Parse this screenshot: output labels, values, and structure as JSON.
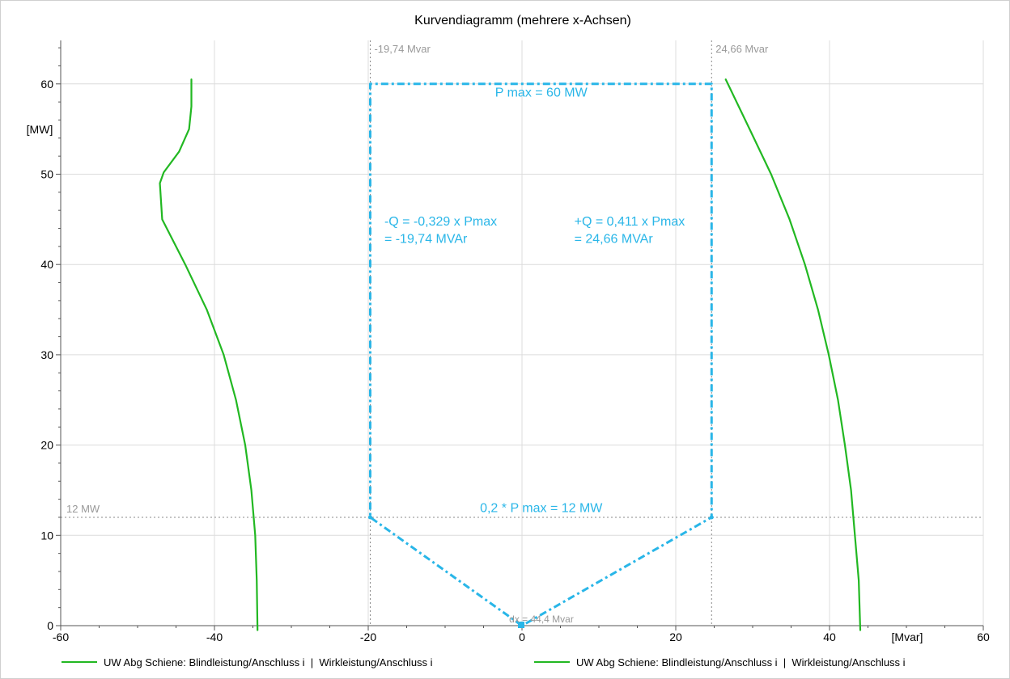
{
  "chart_data": {
    "type": "line",
    "title": "Kurvendiagramm (mehrere x-Achsen)",
    "xlabel": "[Mvar]",
    "ylabel": "[MW]",
    "xlim": [
      -60,
      60
    ],
    "ylim": [
      0,
      65
    ],
    "x_ticks": [
      -60,
      -40,
      -20,
      0,
      20,
      40,
      60
    ],
    "y_ticks": [
      0,
      10,
      20,
      30,
      40,
      50,
      60
    ],
    "grid": true,
    "legend_position": "bottom",
    "series": [
      {
        "name": "UW Abg Schiene: Blindleistung/Anschluss i  |  Wirkleistung/Anschluss i",
        "color": "#22b822",
        "points": [
          [
            -34.4,
            -0.5
          ],
          [
            -34.5,
            5
          ],
          [
            -34.7,
            10
          ],
          [
            -35.2,
            15
          ],
          [
            -36.0,
            20
          ],
          [
            -37.2,
            25
          ],
          [
            -38.8,
            30
          ],
          [
            -41.0,
            35
          ],
          [
            -43.8,
            40
          ],
          [
            -46.8,
            45
          ],
          [
            -47.1,
            49
          ],
          [
            -46.6,
            50.2
          ],
          [
            -44.6,
            52.5
          ],
          [
            -43.3,
            55
          ],
          [
            -43.0,
            57.5
          ],
          [
            -43.0,
            60.5
          ]
        ]
      },
      {
        "name": "UW Abg Schiene: Blindleistung/Anschluss i  |  Wirkleistung/Anschluss i",
        "color": "#22b822",
        "points": [
          [
            26.5,
            60.5
          ],
          [
            29.6,
            55
          ],
          [
            32.4,
            50
          ],
          [
            34.8,
            45
          ],
          [
            36.8,
            40
          ],
          [
            38.5,
            35
          ],
          [
            39.9,
            30
          ],
          [
            41.1,
            25
          ],
          [
            42.0,
            20
          ],
          [
            42.8,
            15
          ],
          [
            43.3,
            10
          ],
          [
            43.8,
            5
          ],
          [
            44.0,
            -0.5
          ]
        ]
      }
    ],
    "limit_curve": {
      "color": "#29b6e8",
      "points": [
        [
          0,
          0
        ],
        [
          -19.74,
          12
        ],
        [
          -19.74,
          60
        ],
        [
          24.66,
          60
        ],
        [
          24.66,
          12
        ],
        [
          0,
          0
        ]
      ]
    },
    "reference_lines": [
      {
        "axis": "x",
        "value": -19.74,
        "label": "-19,74 Mvar"
      },
      {
        "axis": "x",
        "value": 24.66,
        "label": "24,66 Mvar"
      },
      {
        "axis": "y",
        "value": 12,
        "label": "12 MW"
      }
    ],
    "annotations": [
      {
        "text": "P max = 60 MW",
        "x": 2.5,
        "y": 58.6,
        "anchor": "middle"
      },
      {
        "text": "-Q = -0,329 x Pmax",
        "x": -17.9,
        "y": 44.3,
        "anchor": "start"
      },
      {
        "text": "= -19,74 MVAr",
        "x": -17.9,
        "y": 42.4,
        "anchor": "start"
      },
      {
        "text": "+Q = 0,411 x Pmax",
        "x": 6.8,
        "y": 44.3,
        "anchor": "start"
      },
      {
        "text": "= 24,66 MVAr",
        "x": 6.8,
        "y": 42.4,
        "anchor": "start"
      },
      {
        "text": "0,2 * P max = 12 MW",
        "x": 2.5,
        "y": 12.6,
        "anchor": "middle"
      }
    ],
    "dx_label": "dx = 44,4 Mvar"
  }
}
